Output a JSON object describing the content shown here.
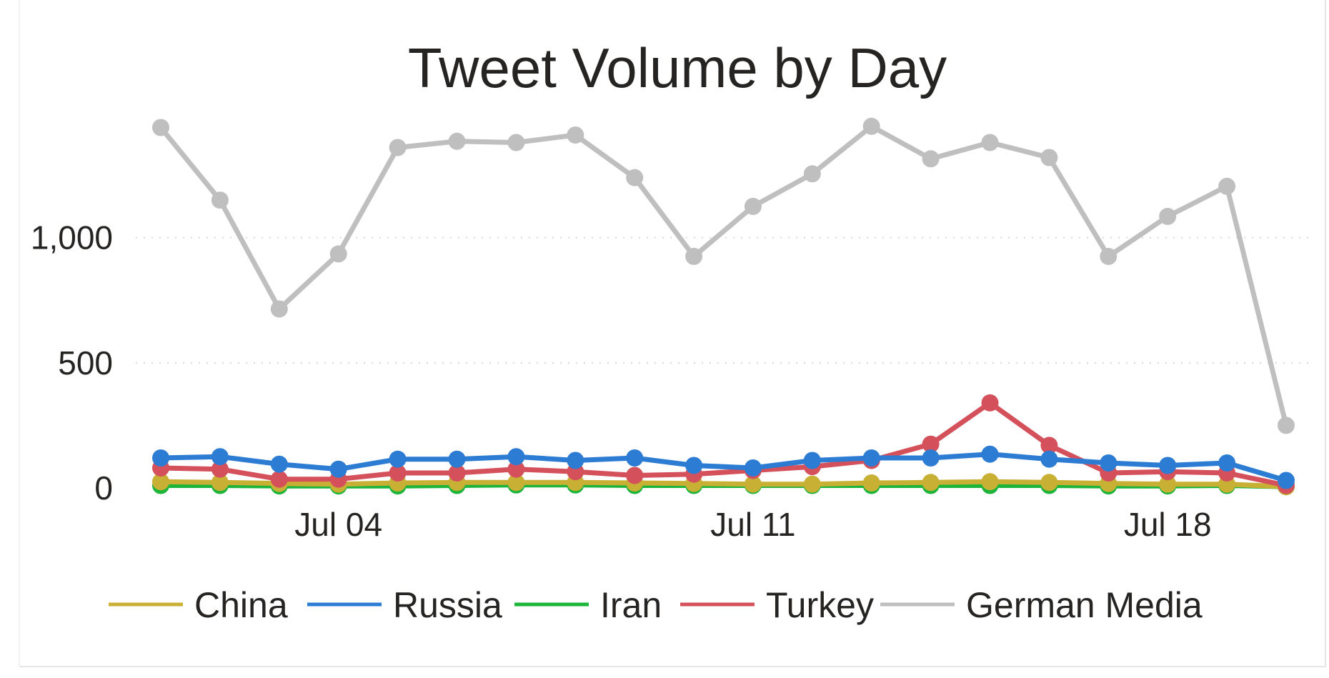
{
  "chart_data": {
    "type": "line",
    "title": "Tweet Volume by Day",
    "xlabel": "",
    "ylabel": "",
    "x": [
      "2020-07-01",
      "2020-07-02",
      "2020-07-03",
      "2020-07-04",
      "2020-07-05",
      "2020-07-06",
      "2020-07-07",
      "2020-07-08",
      "2020-07-09",
      "2020-07-10",
      "2020-07-11",
      "2020-07-12",
      "2020-07-13",
      "2020-07-14",
      "2020-07-15",
      "2020-07-16",
      "2020-07-17",
      "2020-07-18",
      "2020-07-19",
      "2020-07-20"
    ],
    "x_ticks": [
      {
        "date": "2020-07-04",
        "label": "Jul 04"
      },
      {
        "date": "2020-07-11",
        "label": "Jul 11"
      },
      {
        "date": "2020-07-18",
        "label": "Jul 18"
      }
    ],
    "y_ticks": [
      {
        "value": 0,
        "label": "0"
      },
      {
        "value": 500,
        "label": "500"
      },
      {
        "value": 1000,
        "label": "1,000"
      }
    ],
    "ylim": [
      0,
      1450
    ],
    "grid": "horizontal dotted",
    "legend": "bottom",
    "series": [
      {
        "name": "China",
        "color": "#C8B034",
        "values": [
          25,
          22,
          18,
          15,
          20,
          22,
          22,
          22,
          20,
          18,
          15,
          15,
          20,
          22,
          25,
          22,
          18,
          15,
          15,
          5
        ]
      },
      {
        "name": "Russia",
        "color": "#2D7CD4",
        "values": [
          120,
          125,
          95,
          75,
          115,
          115,
          125,
          110,
          120,
          90,
          80,
          110,
          120,
          120,
          135,
          115,
          100,
          90,
          100,
          30
        ]
      },
      {
        "name": "Iran",
        "color": "#1DB43A",
        "values": [
          10,
          10,
          8,
          8,
          8,
          10,
          12,
          12,
          10,
          10,
          10,
          10,
          10,
          10,
          10,
          10,
          8,
          8,
          10,
          5
        ]
      },
      {
        "name": "Turkey",
        "color": "#D4515C",
        "values": [
          80,
          75,
          35,
          35,
          60,
          60,
          75,
          65,
          50,
          55,
          70,
          85,
          110,
          175,
          340,
          170,
          60,
          65,
          60,
          10
        ]
      },
      {
        "name": "German Media",
        "color": "#BFBFBF",
        "values": [
          1440,
          1150,
          715,
          935,
          1360,
          1385,
          1380,
          1410,
          1240,
          925,
          1125,
          1255,
          1445,
          1315,
          1380,
          1320,
          925,
          1085,
          1205,
          250
        ]
      }
    ]
  }
}
